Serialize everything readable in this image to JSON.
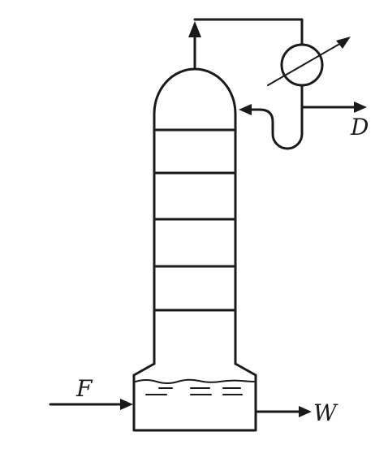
{
  "labels": {
    "feed": "F",
    "distillate": "D",
    "bottoms": "W"
  }
}
